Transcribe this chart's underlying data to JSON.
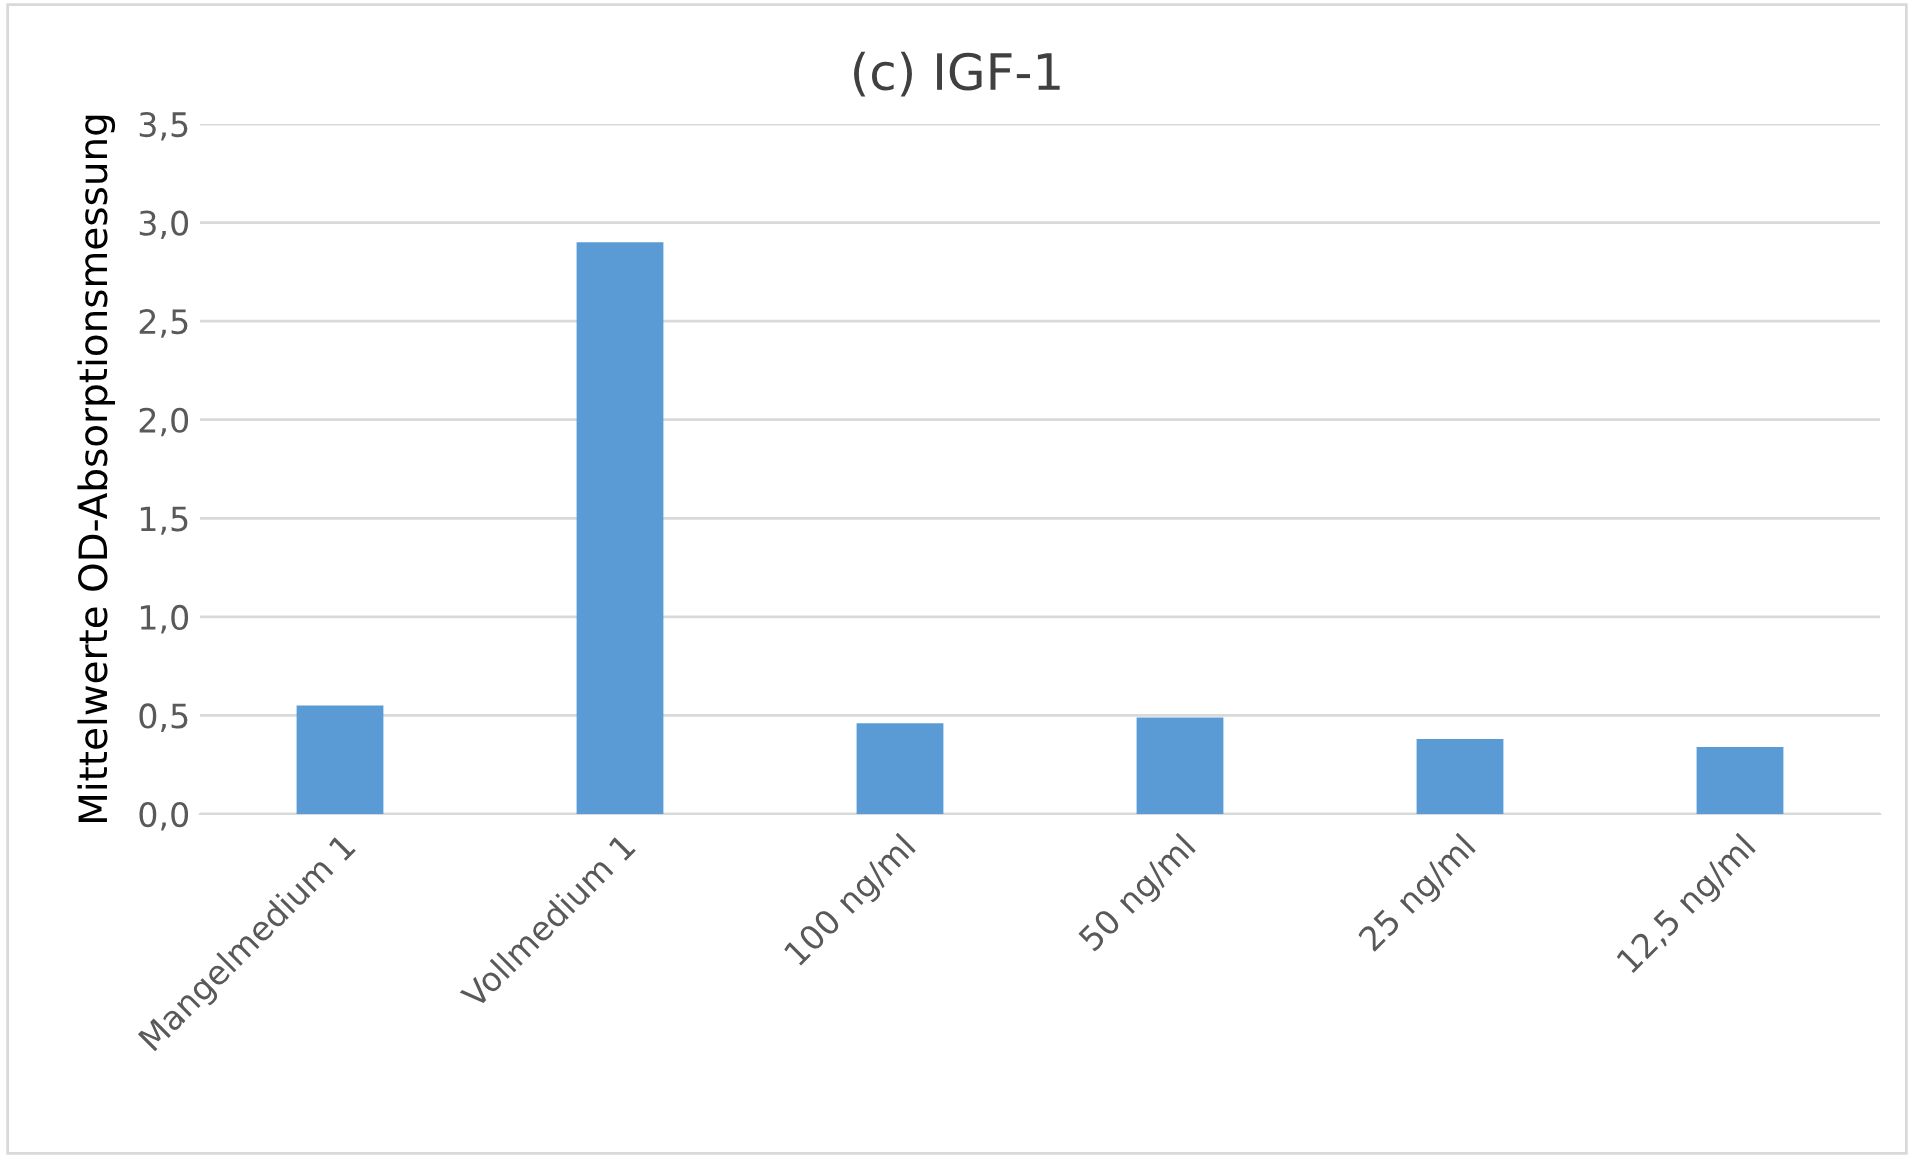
{
  "chart_data": {
    "type": "bar",
    "title": "(c) IGF-1",
    "ylabel": "Mittelwerte OD-Absorptionsmessung",
    "categories": [
      "Mangelmedium 1",
      "Vollmedium 1",
      "100 ng/ml",
      "50 ng/ml",
      "25 ng/ml",
      "12,5 ng/ml"
    ],
    "values": [
      0.55,
      2.9,
      0.46,
      0.49,
      0.38,
      0.34
    ],
    "color": "#5b9bd5",
    "ylim": [
      0,
      3.5
    ],
    "yticks": [
      {
        "value": 0,
        "label": "0,0"
      },
      {
        "value": 0.5,
        "label": "0,5"
      },
      {
        "value": 1,
        "label": "1,0"
      },
      {
        "value": 1.5,
        "label": "1,5"
      },
      {
        "value": 2,
        "label": "2,0"
      },
      {
        "value": 2.5,
        "label": "2,5"
      },
      {
        "value": 3,
        "label": "3,0"
      },
      {
        "value": 3.5,
        "label": "3,5"
      }
    ],
    "grid": "y",
    "legend": false
  }
}
